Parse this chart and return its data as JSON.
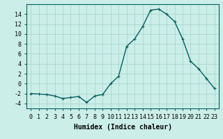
{
  "x_data": [
    0,
    1,
    2,
    3,
    4,
    5,
    6,
    7,
    8,
    9,
    10,
    11,
    12,
    13,
    14,
    15,
    16,
    17,
    18,
    19,
    20,
    21,
    22,
    23
  ],
  "y_data": [
    -2.0,
    -2.1,
    -2.2,
    -2.5,
    -3.0,
    -2.8,
    -2.6,
    -3.8,
    -2.5,
    -2.2,
    0.0,
    1.5,
    7.5,
    9.0,
    11.5,
    14.8,
    15.0,
    14.0,
    12.5,
    9.0,
    4.5,
    3.0,
    1.0,
    -1.0
  ],
  "line_color": "#006060",
  "marker": "+",
  "markersize": 3,
  "background_color": "#cceee8",
  "grid_color": "#aad4ce",
  "xlabel": "Humidex (Indice chaleur)",
  "xlim": [
    -0.5,
    23.5
  ],
  "ylim": [
    -5,
    16
  ],
  "yticks": [
    -4,
    -2,
    0,
    2,
    4,
    6,
    8,
    10,
    12,
    14
  ],
  "xticks": [
    0,
    1,
    2,
    3,
    4,
    5,
    6,
    7,
    8,
    9,
    10,
    11,
    12,
    13,
    14,
    15,
    16,
    17,
    18,
    19,
    20,
    21,
    22,
    23
  ],
  "tick_fontsize": 6,
  "xlabel_fontsize": 7,
  "linewidth": 1.0
}
